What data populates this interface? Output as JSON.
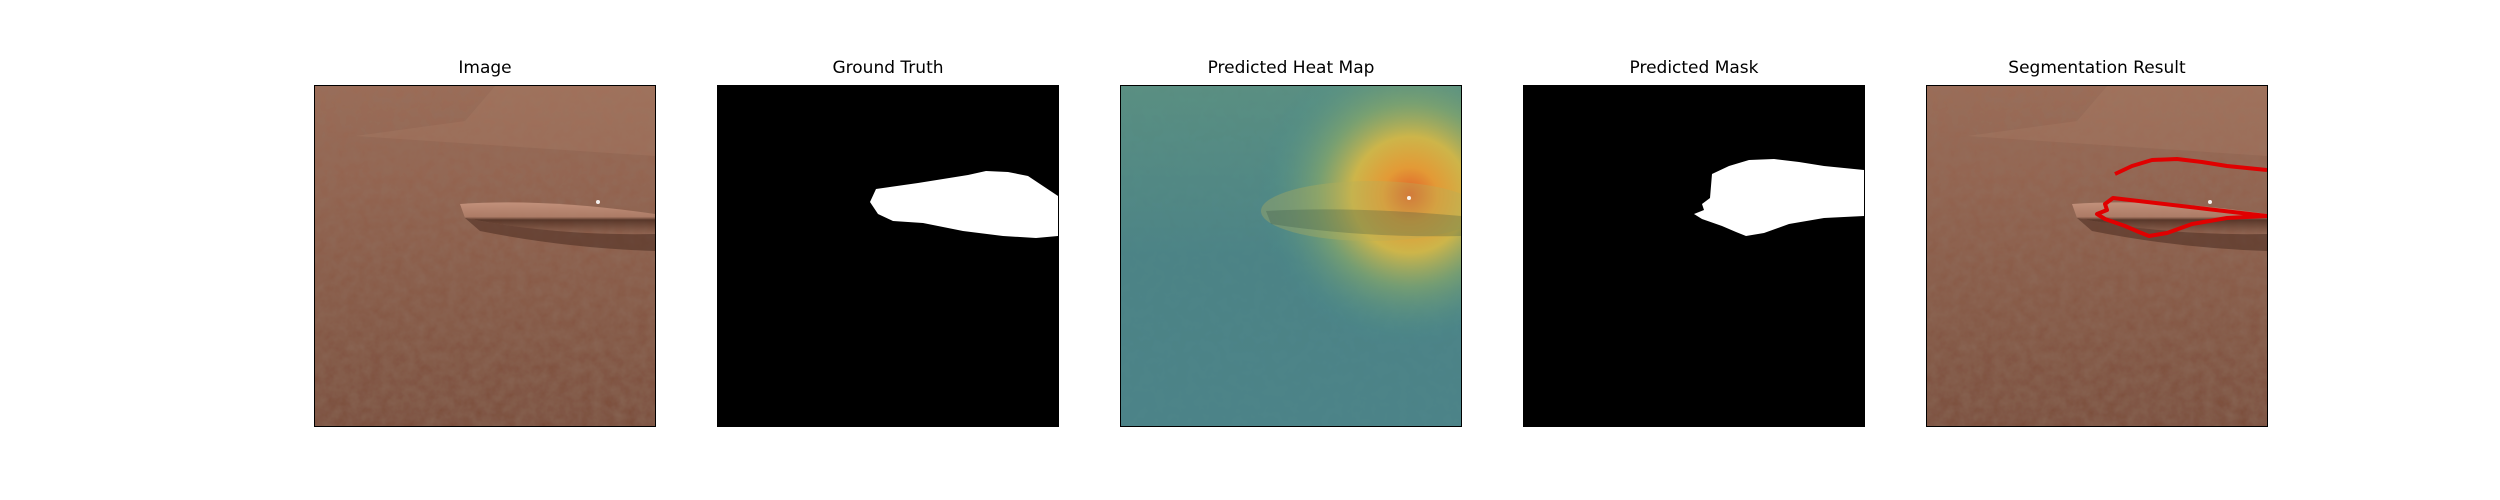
{
  "panels": [
    {
      "title": "Image"
    },
    {
      "title": "Ground Truth"
    },
    {
      "title": "Predicted Heat Map"
    },
    {
      "title": "Predicted Mask"
    },
    {
      "title": "Segmentation Result"
    }
  ],
  "colors": {
    "leather_light": "#9a6a55",
    "leather_dark": "#6e4634",
    "mask_background": "#000000",
    "mask_foreground": "#ffffff",
    "heat_low": "#3f8c93",
    "heat_high": "#e0602a",
    "contour": "#e00000"
  }
}
